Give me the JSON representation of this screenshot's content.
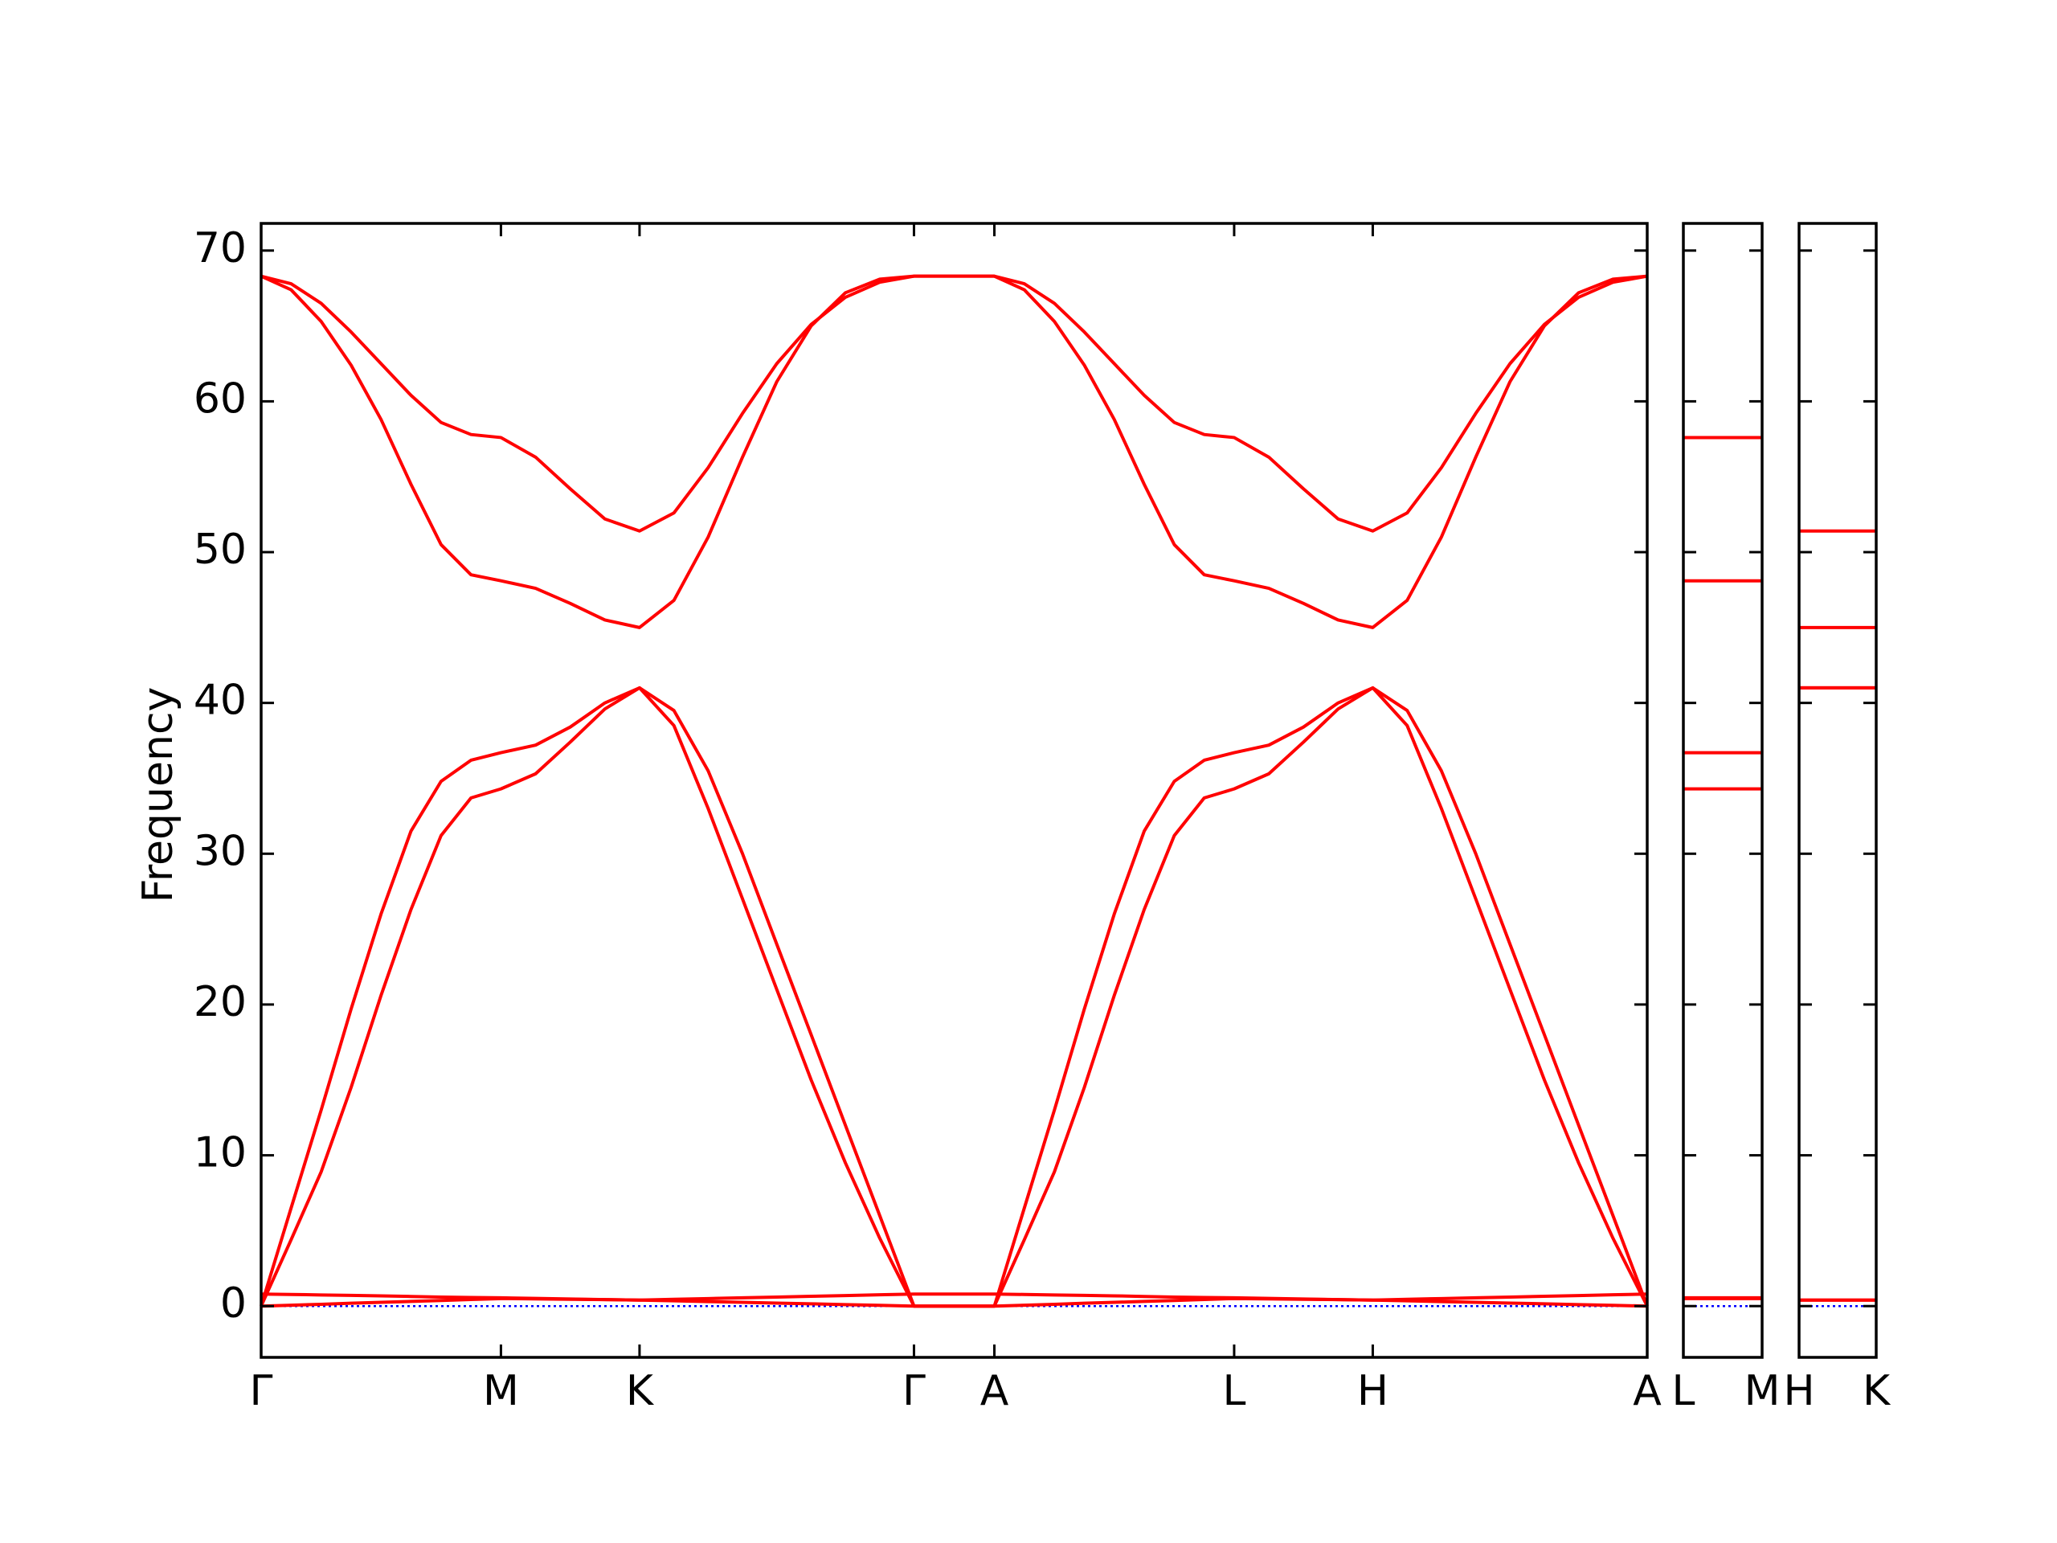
{
  "chart_data": [
    {
      "type": "line",
      "ylabel": "Frequency",
      "x": [
        0,
        0.216,
        0.433,
        0.649,
        0.865,
        1.081,
        1.298,
        1.514,
        1.73,
        1.98,
        2.23,
        2.48,
        2.73,
        2.978,
        3.225,
        3.473,
        3.72,
        3.968,
        4.215,
        4.463,
        4.71,
        5.0,
        5.29,
        5.506,
        5.723,
        5.939,
        6.155,
        6.371,
        6.588,
        6.804,
        7.02,
        7.27,
        7.52,
        7.77,
        8.02,
        8.268,
        8.515,
        8.763,
        9.01,
        9.258,
        9.505,
        9.753,
        10
      ],
      "xlim": [
        0,
        10
      ],
      "xticks": [
        {
          "value": 0,
          "label": "Γ"
        },
        {
          "value": 1.73,
          "label": "M"
        },
        {
          "value": 2.73,
          "label": "K"
        },
        {
          "value": 4.71,
          "label": "Γ"
        },
        {
          "value": 5.29,
          "label": "A"
        },
        {
          "value": 7.02,
          "label": "L"
        },
        {
          "value": 8.02,
          "label": "H"
        },
        {
          "value": 10,
          "label": "A"
        }
      ],
      "ylim": [
        -3.4,
        71.8
      ],
      "yticks": [
        0,
        10,
        20,
        30,
        40,
        50,
        60,
        70
      ],
      "hline": 0,
      "hline_color": "#0000ff",
      "series": [
        {
          "color": "#ff0000",
          "values": [
            0,
            6.5,
            13,
            19.7,
            26,
            31.5,
            34.8,
            36.2,
            36.7,
            37.2,
            38.4,
            40,
            41,
            39.5,
            35.5,
            30,
            24,
            18,
            12,
            6,
            0,
            0,
            0,
            6.5,
            13,
            19.7,
            26,
            31.5,
            34.8,
            36.2,
            36.7,
            37.2,
            38.4,
            40,
            41,
            39.5,
            35.5,
            30,
            24,
            18,
            12,
            6,
            0
          ]
        },
        {
          "color": "#ff0000",
          "values": [
            0,
            4.4,
            8.9,
            14.5,
            20.6,
            26.3,
            31.2,
            33.7,
            34.3,
            35.3,
            37.4,
            39.6,
            41,
            38.5,
            33,
            27,
            21,
            15,
            9.5,
            4.5,
            0,
            0,
            0,
            4.4,
            8.9,
            14.5,
            20.6,
            26.3,
            31.2,
            33.7,
            34.3,
            35.3,
            37.4,
            39.6,
            41,
            38.5,
            33,
            27,
            21,
            15,
            9.5,
            4.5,
            0
          ]
        },
        {
          "color": "#ff0000",
          "values": [
            68.3,
            67.8,
            66.5,
            64.6,
            62.5,
            60.4,
            58.6,
            57.8,
            57.6,
            56.3,
            54.2,
            52.2,
            51.4,
            52.6,
            55.6,
            59.2,
            62.5,
            65.1,
            66.9,
            67.9,
            68.3,
            68.3,
            68.3,
            67.8,
            66.5,
            64.6,
            62.5,
            60.4,
            58.6,
            57.8,
            57.6,
            56.3,
            54.2,
            52.2,
            51.4,
            52.6,
            55.6,
            59.2,
            62.5,
            65.1,
            66.9,
            67.9,
            68.3
          ]
        },
        {
          "color": "#ff0000",
          "values": [
            68.3,
            67.4,
            65.3,
            62.4,
            58.8,
            54.5,
            50.5,
            48.5,
            48.1,
            47.6,
            46.6,
            45.5,
            45,
            46.8,
            51,
            56.3,
            61.3,
            65,
            67.2,
            68.1,
            68.3,
            68.3,
            68.3,
            67.4,
            65.3,
            62.4,
            58.8,
            54.5,
            50.5,
            48.5,
            48.1,
            47.6,
            46.6,
            45.5,
            45,
            46.8,
            51,
            56.3,
            61.3,
            65,
            67.2,
            68.1,
            68.3
          ]
        },
        {
          "color": "#ff0000",
          "values": [
            0.8,
            0.77,
            0.74,
            0.71,
            0.68,
            0.64,
            0.6,
            0.57,
            0.55,
            0.51,
            0.47,
            0.43,
            0.4,
            0.45,
            0.5,
            0.55,
            0.6,
            0.65,
            0.7,
            0.75,
            0.8,
            0.8,
            0.8,
            0.77,
            0.74,
            0.71,
            0.68,
            0.64,
            0.6,
            0.57,
            0.55,
            0.51,
            0.47,
            0.43,
            0.4,
            0.45,
            0.5,
            0.55,
            0.6,
            0.65,
            0.7,
            0.75,
            0.8
          ]
        },
        {
          "color": "#ff0000",
          "values": [
            0,
            0.06,
            0.12,
            0.19,
            0.25,
            0.31,
            0.37,
            0.44,
            0.5,
            0.48,
            0.45,
            0.43,
            0.4,
            0.35,
            0.3,
            0.25,
            0.2,
            0.15,
            0.1,
            0.05,
            0,
            0,
            0,
            0.06,
            0.12,
            0.19,
            0.25,
            0.31,
            0.37,
            0.44,
            0.5,
            0.48,
            0.45,
            0.43,
            0.4,
            0.35,
            0.3,
            0.25,
            0.2,
            0.15,
            0.1,
            0.05,
            0
          ]
        }
      ]
    },
    {
      "type": "line",
      "x": [
        0,
        1
      ],
      "xlim": [
        0,
        1
      ],
      "xticks": [
        {
          "value": 0,
          "label": "L"
        },
        {
          "value": 1,
          "label": "M"
        }
      ],
      "ylim": [
        -3.4,
        71.8
      ],
      "hline": 0,
      "hline_color": "#0000ff",
      "series": [
        {
          "color": "#ff0000",
          "values": [
            57.6,
            57.6
          ]
        },
        {
          "color": "#ff0000",
          "values": [
            48.1,
            48.1
          ]
        },
        {
          "color": "#ff0000",
          "values": [
            36.7,
            36.7
          ]
        },
        {
          "color": "#ff0000",
          "values": [
            34.3,
            34.3
          ]
        },
        {
          "color": "#ff0000",
          "values": [
            0.55,
            0.55
          ]
        },
        {
          "color": "#ff0000",
          "values": [
            0.5,
            0.5
          ]
        }
      ]
    },
    {
      "type": "line",
      "x": [
        0,
        1
      ],
      "xlim": [
        0,
        1
      ],
      "xticks": [
        {
          "value": 0,
          "label": "H"
        },
        {
          "value": 1,
          "label": "K"
        }
      ],
      "ylim": [
        -3.4,
        71.8
      ],
      "hline": 0,
      "hline_color": "#0000ff",
      "series": [
        {
          "color": "#ff0000",
          "values": [
            51.4,
            51.4
          ]
        },
        {
          "color": "#ff0000",
          "values": [
            45,
            45
          ]
        },
        {
          "color": "#ff0000",
          "values": [
            41,
            41
          ]
        },
        {
          "color": "#ff0000",
          "values": [
            41,
            41
          ]
        },
        {
          "color": "#ff0000",
          "values": [
            0.4,
            0.4
          ]
        },
        {
          "color": "#ff0000",
          "values": [
            0.4,
            0.4
          ]
        }
      ]
    }
  ]
}
